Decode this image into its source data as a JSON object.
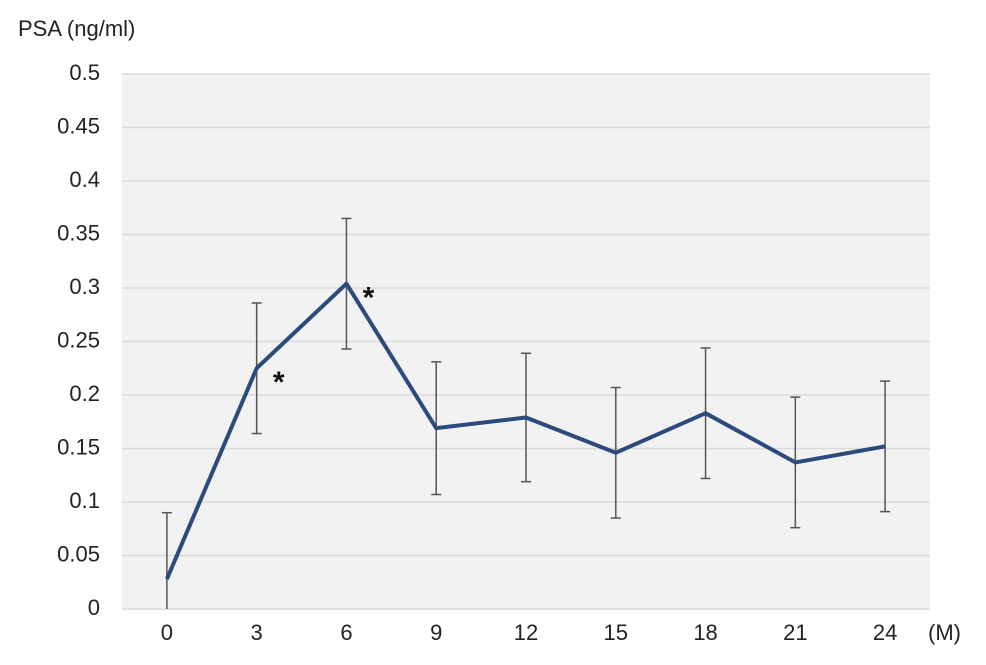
{
  "chart_data": {
    "type": "line",
    "y_label": "PSA (ng/ml)",
    "x_label": "(M)",
    "categories": [
      "0",
      "3",
      "6",
      "9",
      "12",
      "15",
      "18",
      "21",
      "24"
    ],
    "series": [
      {
        "color": "#2c4a7c",
        "values": [
          0.028,
          0.225,
          0.304,
          0.169,
          0.179,
          0.146,
          0.183,
          0.137,
          0.152
        ],
        "errors": [
          0.062,
          0.061,
          0.061,
          0.062,
          0.06,
          0.061,
          0.061,
          0.061,
          0.061
        ]
      }
    ],
    "ylim": [
      0,
      0.5
    ],
    "yticks": [
      0,
      0.05,
      0.1,
      0.15,
      0.2,
      0.25,
      0.3,
      0.35,
      0.4,
      0.45,
      0.5
    ],
    "grid": true,
    "annotations": [
      {
        "text": "*",
        "x": "3"
      },
      {
        "text": "*",
        "x": "6"
      }
    ]
  }
}
